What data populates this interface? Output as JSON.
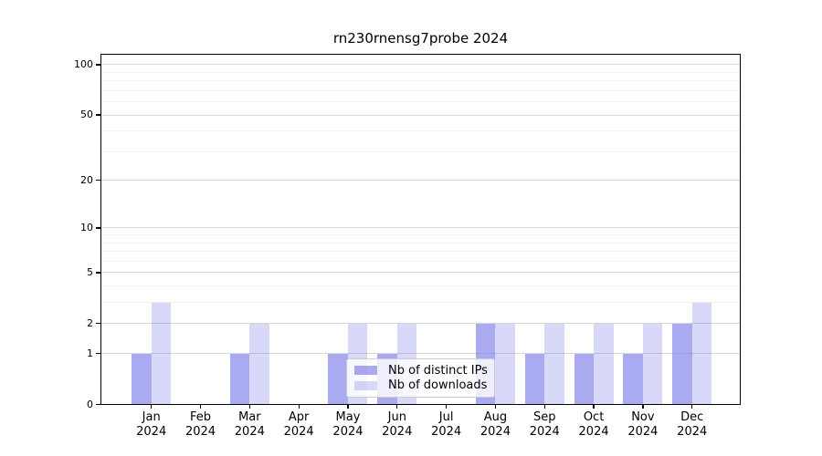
{
  "chart_data": {
    "type": "bar",
    "title": "rn230rnensg7probe 2024",
    "categories": [
      "Jan 2024",
      "Feb 2024",
      "Mar 2024",
      "Apr 2024",
      "May 2024",
      "Jun 2024",
      "Jul 2024",
      "Aug 2024",
      "Sep 2024",
      "Oct 2024",
      "Nov 2024",
      "Dec 2024"
    ],
    "x_tick_months": [
      "Jan",
      "Feb",
      "Mar",
      "Apr",
      "May",
      "Jun",
      "Jul",
      "Aug",
      "Sep",
      "Oct",
      "Nov",
      "Dec"
    ],
    "x_tick_year": "2024",
    "series": [
      {
        "name": "Nb of distinct IPs",
        "color": "rgba(125,125,232,0.65)",
        "values": [
          1,
          0,
          1,
          0,
          1,
          1,
          0,
          2,
          1,
          1,
          1,
          2
        ]
      },
      {
        "name": "Nb of downloads",
        "color": "rgba(125,125,232,0.30)",
        "values": [
          3,
          0,
          2,
          0,
          2,
          2,
          0,
          2,
          2,
          2,
          2,
          3
        ]
      }
    ],
    "yscale": "log1p",
    "yticks_major": [
      0,
      1,
      2,
      5,
      10,
      20,
      50,
      100
    ],
    "yticks_minor": [
      3,
      4,
      6,
      7,
      8,
      9,
      30,
      40,
      60,
      70,
      80,
      90
    ],
    "ylim": [
      0,
      116
    ],
    "xlabel": "",
    "ylabel": "",
    "grid": true,
    "legend_position": "lower-center",
    "accent_base_color": "#7d7de8"
  }
}
